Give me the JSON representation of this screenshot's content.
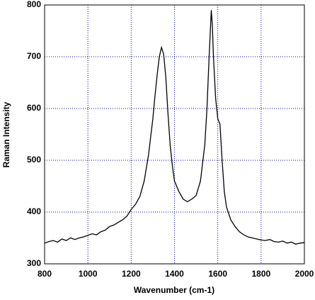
{
  "chart_data": {
    "type": "line",
    "xlabel": "Wavenumber (cm-1)",
    "ylabel": "Raman Intensity",
    "x": [
      800,
      820,
      840,
      860,
      880,
      900,
      920,
      940,
      960,
      980,
      1000,
      1020,
      1040,
      1060,
      1080,
      1100,
      1120,
      1140,
      1160,
      1180,
      1200,
      1220,
      1240,
      1260,
      1280,
      1300,
      1310,
      1320,
      1330,
      1340,
      1350,
      1360,
      1370,
      1380,
      1390,
      1400,
      1420,
      1440,
      1460,
      1480,
      1500,
      1520,
      1540,
      1550,
      1560,
      1570,
      1575,
      1580,
      1590,
      1600,
      1610,
      1620,
      1630,
      1640,
      1660,
      1680,
      1700,
      1720,
      1740,
      1760,
      1780,
      1800,
      1820,
      1840,
      1860,
      1880,
      1900,
      1920,
      1940,
      1960,
      1980,
      2000
    ],
    "values": [
      340,
      343,
      345,
      342,
      348,
      345,
      350,
      347,
      350,
      352,
      355,
      358,
      356,
      362,
      365,
      372,
      375,
      380,
      385,
      392,
      405,
      415,
      430,
      460,
      510,
      580,
      625,
      665,
      700,
      718,
      705,
      660,
      590,
      530,
      490,
      460,
      440,
      425,
      420,
      425,
      432,
      460,
      530,
      600,
      700,
      790,
      760,
      700,
      620,
      580,
      570,
      500,
      440,
      410,
      385,
      372,
      362,
      356,
      352,
      350,
      348,
      346,
      345,
      347,
      343,
      342,
      344,
      340,
      342,
      338,
      340,
      341
    ],
    "color": "#000000",
    "xlim": [
      800,
      2000
    ],
    "xticks": [
      800,
      1000,
      1200,
      1400,
      1600,
      1800,
      2000
    ],
    "ylim": [
      300,
      800
    ],
    "yticks": [
      300,
      400,
      500,
      600,
      700,
      800
    ],
    "grid": true,
    "grid_color": "#0000aa"
  }
}
